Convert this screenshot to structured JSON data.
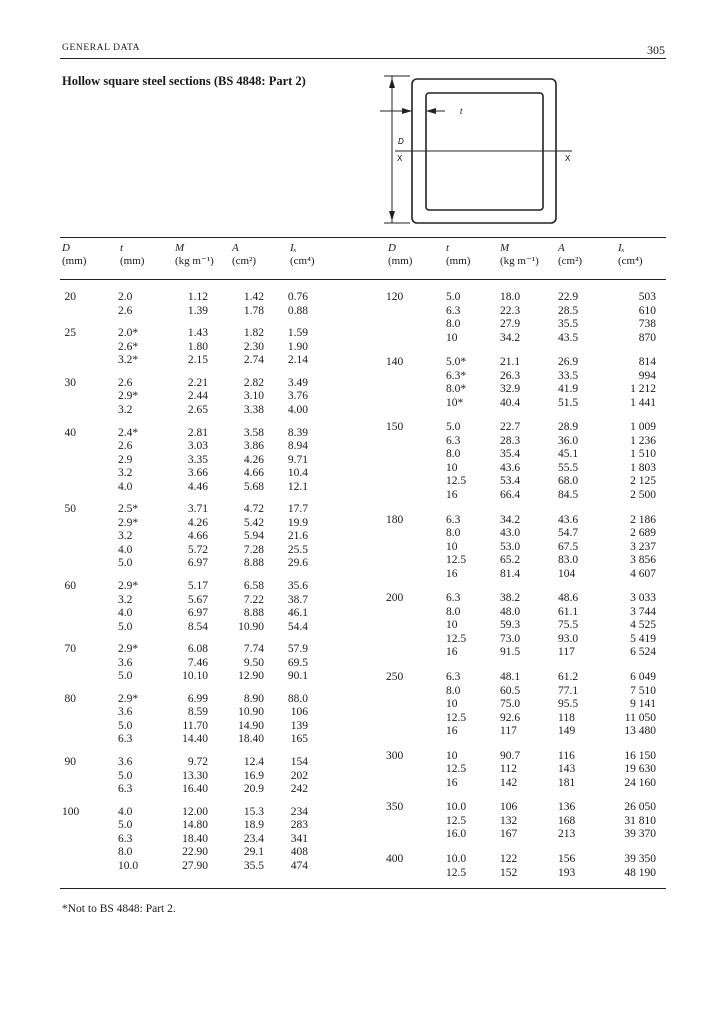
{
  "header": {
    "running_head": "GENERAL DATA",
    "page_number": "305"
  },
  "title": "Hollow square steel sections (BS 4848: Part 2)",
  "diagram": {
    "label_D": "D",
    "label_t": "t",
    "label_x_left": "X",
    "label_x_right": "X"
  },
  "columns": [
    {
      "symbol": "D",
      "unit": "(mm)"
    },
    {
      "symbol": "t",
      "unit": "(mm)"
    },
    {
      "symbol": "M",
      "unit": "(kg m⁻¹)"
    },
    {
      "symbol": "A",
      "unit": "(cm²)"
    },
    {
      "symbol": "Iₓ",
      "unit": "(cm⁴)"
    }
  ],
  "left_table": [
    {
      "D": "20",
      "rows": [
        [
          "2.0",
          "1.12",
          "1.42",
          "0.76"
        ],
        [
          "2.6",
          "1.39",
          "1.78",
          "0.88"
        ]
      ]
    },
    {
      "D": "25",
      "rows": [
        [
          "2.0*",
          "1.43",
          "1.82",
          "1.59"
        ],
        [
          "2.6*",
          "1.80",
          "2.30",
          "1.90"
        ],
        [
          "3.2*",
          "2.15",
          "2.74",
          "2.14"
        ]
      ]
    },
    {
      "D": "30",
      "rows": [
        [
          "2.6",
          "2.21",
          "2.82",
          "3.49"
        ],
        [
          "2.9*",
          "2.44",
          "3.10",
          "3.76"
        ],
        [
          "3.2",
          "2.65",
          "3.38",
          "4.00"
        ]
      ]
    },
    {
      "D": "40",
      "rows": [
        [
          "2.4*",
          "2.81",
          "3.58",
          "8.39"
        ],
        [
          "2.6",
          "3.03",
          "3.86",
          "8.94"
        ],
        [
          "2.9",
          "3.35",
          "4.26",
          "9.71"
        ],
        [
          "3.2",
          "3.66",
          "4.66",
          "10.4"
        ],
        [
          "4.0",
          "4.46",
          "5.68",
          "12.1"
        ]
      ]
    },
    {
      "D": "50",
      "rows": [
        [
          "2.5*",
          "3.71",
          "4.72",
          "17.7"
        ],
        [
          "2.9*",
          "4.26",
          "5.42",
          "19.9"
        ],
        [
          "3.2",
          "4.66",
          "5.94",
          "21.6"
        ],
        [
          "4.0",
          "5.72",
          "7.28",
          "25.5"
        ],
        [
          "5.0",
          "6.97",
          "8.88",
          "29.6"
        ]
      ]
    },
    {
      "D": "60",
      "rows": [
        [
          "2.9*",
          "5.17",
          "6.58",
          "35.6"
        ],
        [
          "3.2",
          "5.67",
          "7.22",
          "38.7"
        ],
        [
          "4.0",
          "6.97",
          "8.88",
          "46.1"
        ],
        [
          "5.0",
          "8.54",
          "10.90",
          "54.4"
        ]
      ]
    },
    {
      "D": "70",
      "rows": [
        [
          "2.9*",
          "6.08",
          "7.74",
          "57.9"
        ],
        [
          "3.6",
          "7.46",
          "9.50",
          "69.5"
        ],
        [
          "5.0",
          "10.10",
          "12.90",
          "90.1"
        ]
      ]
    },
    {
      "D": "80",
      "rows": [
        [
          "2.9*",
          "6.99",
          "8.90",
          "88.0"
        ],
        [
          "3.6",
          "8.59",
          "10.90",
          "106"
        ],
        [
          "5.0",
          "11.70",
          "14.90",
          "139"
        ],
        [
          "6.3",
          "14.40",
          "18.40",
          "165"
        ]
      ]
    },
    {
      "D": "90",
      "rows": [
        [
          "3.6",
          "9.72",
          "12.4",
          "154"
        ],
        [
          "5.0",
          "13.30",
          "16.9",
          "202"
        ],
        [
          "6.3",
          "16.40",
          "20.9",
          "242"
        ]
      ]
    },
    {
      "D": "100",
      "rows": [
        [
          "4.0",
          "12.00",
          "15.3",
          "234"
        ],
        [
          "5.0",
          "14.80",
          "18.9",
          "283"
        ],
        [
          "6.3",
          "18.40",
          "23.4",
          "341"
        ],
        [
          "8.0",
          "22.90",
          "29.1",
          "408"
        ],
        [
          "10.0",
          "27.90",
          "35.5",
          "474"
        ]
      ]
    }
  ],
  "right_table": [
    {
      "D": "120",
      "rows": [
        [
          "5.0",
          "18.0",
          "22.9",
          "503"
        ],
        [
          "6.3",
          "22.3",
          "28.5",
          "610"
        ],
        [
          "8.0",
          "27.9",
          "35.5",
          "738"
        ],
        [
          "10",
          "34.2",
          "43.5",
          "870"
        ]
      ]
    },
    {
      "D": "140",
      "rows": [
        [
          "5.0*",
          "21.1",
          "26.9",
          "814"
        ],
        [
          "6.3*",
          "26.3",
          "33.5",
          "994"
        ],
        [
          "8.0*",
          "32.9",
          "41.9",
          "1 212"
        ],
        [
          "10*",
          "40.4",
          "51.5",
          "1 441"
        ]
      ]
    },
    {
      "D": "150",
      "rows": [
        [
          "5.0",
          "22.7",
          "28.9",
          "1 009"
        ],
        [
          "6.3",
          "28.3",
          "36.0",
          "1 236"
        ],
        [
          "8.0",
          "35.4",
          "45.1",
          "1 510"
        ],
        [
          "10",
          "43.6",
          "55.5",
          "1 803"
        ],
        [
          "12.5",
          "53.4",
          "68.0",
          "2 125"
        ],
        [
          "16",
          "66.4",
          "84.5",
          "2 500"
        ]
      ]
    },
    {
      "D": "180",
      "rows": [
        [
          "6.3",
          "34.2",
          "43.6",
          "2 186"
        ],
        [
          "8.0",
          "43.0",
          "54.7",
          "2 689"
        ],
        [
          "10",
          "53.0",
          "67.5",
          "3 237"
        ],
        [
          "12.5",
          "65.2",
          "83.0",
          "3 856"
        ],
        [
          "16",
          "81.4",
          "104",
          "4 607"
        ]
      ]
    },
    {
      "D": "200",
      "rows": [
        [
          "6.3",
          "38.2",
          "48.6",
          "3 033"
        ],
        [
          "8.0",
          "48.0",
          "61.1",
          "3 744"
        ],
        [
          "10",
          "59.3",
          "75.5",
          "4 525"
        ],
        [
          "12.5",
          "73.0",
          "93.0",
          "5 419"
        ],
        [
          "16",
          "91.5",
          "117",
          "6 524"
        ]
      ]
    },
    {
      "D": "250",
      "rows": [
        [
          "6.3",
          "48.1",
          "61.2",
          "6 049"
        ],
        [
          "8.0",
          "60.5",
          "77.1",
          "7 510"
        ],
        [
          "10",
          "75.0",
          "95.5",
          "9 141"
        ],
        [
          "12.5",
          "92.6",
          "118",
          "11 050"
        ],
        [
          "16",
          "117",
          "149",
          "13 480"
        ]
      ]
    },
    {
      "D": "300",
      "rows": [
        [
          "10",
          "90.7",
          "116",
          "16 150"
        ],
        [
          "12.5",
          "112",
          "143",
          "19 630"
        ],
        [
          "16",
          "142",
          "181",
          "24 160"
        ]
      ]
    },
    {
      "D": "350",
      "rows": [
        [
          "10.0",
          "106",
          "136",
          "26 050"
        ],
        [
          "12.5",
          "132",
          "168",
          "31 810"
        ],
        [
          "16.0",
          "167",
          "213",
          "39 370"
        ]
      ]
    },
    {
      "D": "400",
      "rows": [
        [
          "10.0",
          "122",
          "156",
          "39 350"
        ],
        [
          "12.5",
          "152",
          "193",
          "48 190"
        ]
      ]
    }
  ],
  "footnote": "*Not to BS 4848: Part 2."
}
